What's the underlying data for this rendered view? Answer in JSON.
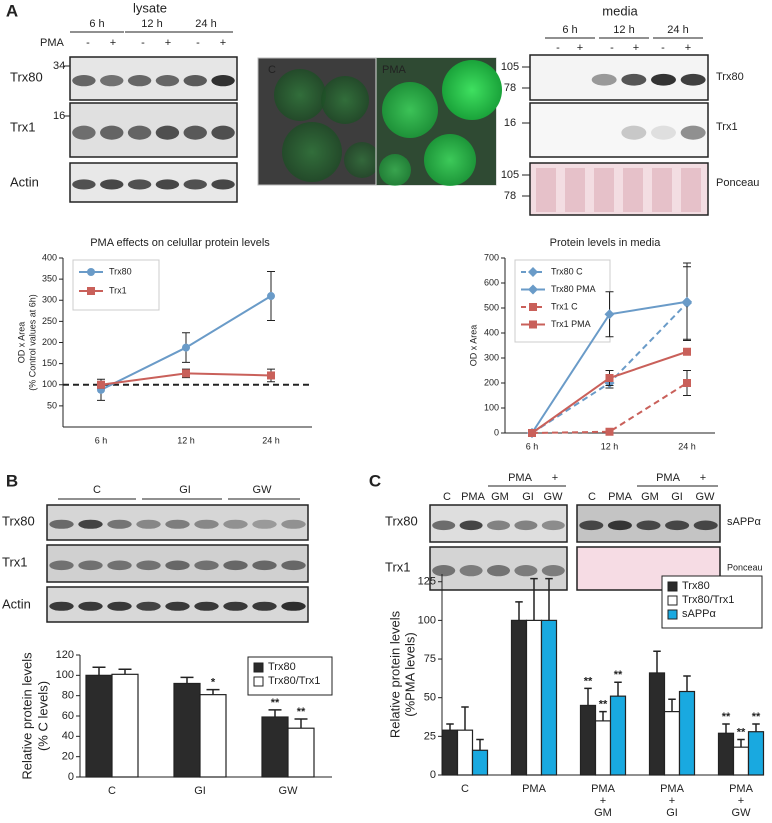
{
  "panel_a": {
    "label": "A",
    "lysate": {
      "title": "lysate",
      "times": [
        "6 h",
        "12 h",
        "24 h"
      ],
      "treatment": "PMA",
      "signs": [
        "-",
        "+",
        "-",
        "+",
        "-",
        "+"
      ],
      "markers": [
        "34",
        "16"
      ],
      "rows": [
        "Trx80",
        "Trx1",
        "Actin"
      ]
    },
    "microscopy": [
      "C",
      "PMA"
    ],
    "media": {
      "title": "media",
      "times": [
        "6 h",
        "12 h",
        "24 h"
      ],
      "signs": [
        "-",
        "+",
        "-",
        "+",
        "-",
        "+"
      ],
      "markers": [
        "105",
        "78",
        "16",
        "105",
        "78"
      ],
      "rows": [
        "Trx80",
        "Trx1",
        "Ponceau"
      ]
    }
  },
  "panel_b": {
    "label": "B",
    "groups": [
      "C",
      "GI",
      "GW"
    ],
    "rows": [
      "Trx80",
      "Trx1",
      "Actin"
    ]
  },
  "panel_c": {
    "label": "C",
    "treatment": [
      "PMA",
      "+",
      "PMA",
      "+"
    ],
    "lanes": [
      "C",
      "PMA",
      "GM",
      "GI",
      "GW",
      "C",
      "PMA",
      "GM",
      "GI",
      "GW"
    ],
    "rows_left": [
      "Trx80",
      "Trx1"
    ],
    "rows_right": [
      "sAPPα",
      "Ponceau"
    ]
  },
  "chart_data": [
    {
      "type": "line",
      "title": "PMA effects on celullar protein levels",
      "y_label": [
        "OD x Area",
        "(% Control values at 6h)"
      ],
      "categories": [
        "6 h",
        "12 h",
        "24 h"
      ],
      "ylim": [
        0,
        400
      ],
      "yticks": [
        50,
        100,
        150,
        200,
        250,
        300,
        350,
        400
      ],
      "reference_line": 100,
      "legend": "top-left",
      "series": [
        {
          "name": "Trx80",
          "color": "#6a9bc8",
          "marker": "circle",
          "dashed": false,
          "values": [
            88,
            188,
            310
          ],
          "errors": [
            25,
            35,
            58
          ]
        },
        {
          "name": "Trx1",
          "color": "#c9605a",
          "marker": "square",
          "dashed": false,
          "values": [
            100,
            127,
            122
          ],
          "errors": [
            8,
            10,
            15
          ]
        }
      ]
    },
    {
      "type": "line",
      "title": "Protein levels in media",
      "y_label": [
        "OD x Area"
      ],
      "categories": [
        "6 h",
        "12 h",
        "24 h"
      ],
      "ylim": [
        0,
        700
      ],
      "yticks": [
        0,
        100,
        200,
        300,
        400,
        500,
        600,
        700
      ],
      "legend": "top-left",
      "series": [
        {
          "name": "Trx80 C",
          "color": "#6a9bc8",
          "marker": "diamond",
          "dashed": true,
          "values": [
            0,
            200,
            520
          ],
          "errors": [
            0,
            20,
            145
          ]
        },
        {
          "name": "Trx80 PMA",
          "color": "#6a9bc8",
          "marker": "diamond",
          "dashed": false,
          "values": [
            0,
            475,
            525
          ],
          "errors": [
            0,
            90,
            155
          ]
        },
        {
          "name": "Trx1 C",
          "color": "#c9605a",
          "marker": "square",
          "dashed": true,
          "values": [
            0,
            5,
            200
          ],
          "errors": [
            0,
            0,
            50
          ]
        },
        {
          "name": "Trx1 PMA",
          "color": "#c9605a",
          "marker": "square",
          "dashed": false,
          "values": [
            0,
            220,
            325
          ],
          "errors": [
            0,
            30,
            0
          ]
        }
      ]
    },
    {
      "type": "bar",
      "y_label": [
        "Relative protein levels",
        "(% C levels)"
      ],
      "categories": [
        "C",
        "GI",
        "GW"
      ],
      "ylim": [
        0,
        120
      ],
      "yticks": [
        0,
        20,
        40,
        60,
        80,
        100,
        120
      ],
      "legend": "top-right",
      "series": [
        {
          "name": "Trx80",
          "color": "#2b2b2b",
          "values": [
            100,
            92,
            59
          ],
          "errors": [
            8,
            6,
            7
          ],
          "significance": [
            null,
            null,
            "**"
          ]
        },
        {
          "name": "Trx80/Trx1",
          "color": "#ffffff",
          "values": [
            101,
            81,
            48
          ],
          "errors": [
            5,
            5,
            9
          ],
          "significance": [
            null,
            "*",
            "**"
          ]
        }
      ]
    },
    {
      "type": "bar",
      "y_label": [
        "Relative protein levels",
        "(%PMA levels)"
      ],
      "categories": [
        "C",
        "PMA",
        "PMA\n+\nGM",
        "PMA\n+\nGI",
        "PMA\n+\nGW"
      ],
      "ylim": [
        0,
        130
      ],
      "yticks": [
        0,
        25,
        50,
        75,
        100,
        125
      ],
      "legend": "top-right",
      "series": [
        {
          "name": "Trx80",
          "color": "#2b2b2b",
          "values": [
            29,
            100,
            45,
            66,
            27
          ],
          "errors": [
            4,
            12,
            11,
            14,
            6
          ],
          "significance": [
            null,
            null,
            "**",
            null,
            "**"
          ]
        },
        {
          "name": "Trx80/Trx1",
          "color": "#ffffff",
          "values": [
            29,
            100,
            35,
            41,
            18
          ],
          "errors": [
            15,
            27,
            6,
            8,
            5
          ],
          "significance": [
            null,
            null,
            "**",
            null,
            "**"
          ]
        },
        {
          "name": "sAPPα",
          "color": "#19a9e0",
          "values": [
            16,
            100,
            51,
            54,
            28
          ],
          "errors": [
            7,
            27,
            9,
            10,
            5
          ],
          "significance": [
            null,
            null,
            "**",
            null,
            "**"
          ]
        }
      ]
    }
  ]
}
